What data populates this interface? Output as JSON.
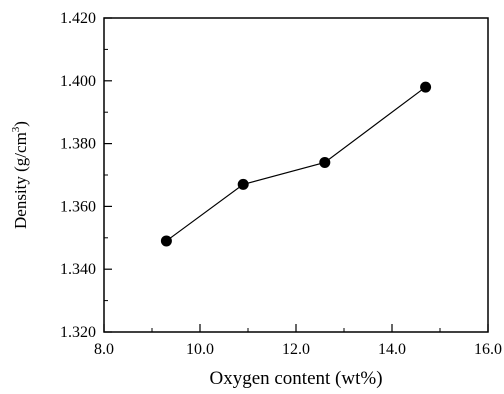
{
  "chart_data": {
    "type": "line",
    "xlabel": "Oxygen content (wt%)",
    "ylabel_main": "Density (g/cm",
    "ylabel_sup": "3",
    "ylabel_close": ")",
    "xlim": [
      8.0,
      16.0
    ],
    "ylim": [
      1.32,
      1.42
    ],
    "x_ticks": [
      "8.0",
      "10.0",
      "12.0",
      "14.0",
      "16.0"
    ],
    "y_ticks": [
      "1.320",
      "1.340",
      "1.360",
      "1.380",
      "1.400",
      "1.420"
    ],
    "grid": false,
    "series": [
      {
        "x": [
          9.3,
          10.9,
          12.6,
          14.7
        ],
        "y": [
          1.349,
          1.367,
          1.374,
          1.398
        ],
        "color": "#000000",
        "marker": "filled-circle"
      }
    ]
  }
}
